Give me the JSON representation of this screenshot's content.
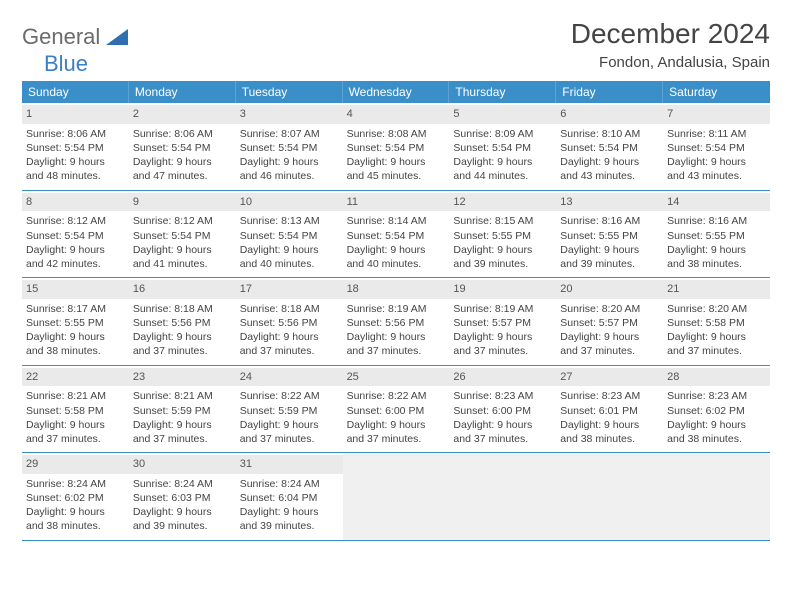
{
  "logo": {
    "text1": "General",
    "text2": "Blue"
  },
  "title": "December 2024",
  "location": "Fondon, Andalusia, Spain",
  "colors": {
    "header_bg": "#3b8fc9",
    "header_text": "#ffffff",
    "logo_gray": "#6b6b6b",
    "logo_blue": "#3b7fc4",
    "daynum_bg": "#eaeaea",
    "empty_bg": "#f0f0f0",
    "week_border": "#3b8fc9"
  },
  "day_names": [
    "Sunday",
    "Monday",
    "Tuesday",
    "Wednesday",
    "Thursday",
    "Friday",
    "Saturday"
  ],
  "weeks": [
    [
      {
        "n": "1",
        "sr": "Sunrise: 8:06 AM",
        "ss": "Sunset: 5:54 PM",
        "d1": "Daylight: 9 hours",
        "d2": "and 48 minutes."
      },
      {
        "n": "2",
        "sr": "Sunrise: 8:06 AM",
        "ss": "Sunset: 5:54 PM",
        "d1": "Daylight: 9 hours",
        "d2": "and 47 minutes."
      },
      {
        "n": "3",
        "sr": "Sunrise: 8:07 AM",
        "ss": "Sunset: 5:54 PM",
        "d1": "Daylight: 9 hours",
        "d2": "and 46 minutes."
      },
      {
        "n": "4",
        "sr": "Sunrise: 8:08 AM",
        "ss": "Sunset: 5:54 PM",
        "d1": "Daylight: 9 hours",
        "d2": "and 45 minutes."
      },
      {
        "n": "5",
        "sr": "Sunrise: 8:09 AM",
        "ss": "Sunset: 5:54 PM",
        "d1": "Daylight: 9 hours",
        "d2": "and 44 minutes."
      },
      {
        "n": "6",
        "sr": "Sunrise: 8:10 AM",
        "ss": "Sunset: 5:54 PM",
        "d1": "Daylight: 9 hours",
        "d2": "and 43 minutes."
      },
      {
        "n": "7",
        "sr": "Sunrise: 8:11 AM",
        "ss": "Sunset: 5:54 PM",
        "d1": "Daylight: 9 hours",
        "d2": "and 43 minutes."
      }
    ],
    [
      {
        "n": "8",
        "sr": "Sunrise: 8:12 AM",
        "ss": "Sunset: 5:54 PM",
        "d1": "Daylight: 9 hours",
        "d2": "and 42 minutes."
      },
      {
        "n": "9",
        "sr": "Sunrise: 8:12 AM",
        "ss": "Sunset: 5:54 PM",
        "d1": "Daylight: 9 hours",
        "d2": "and 41 minutes."
      },
      {
        "n": "10",
        "sr": "Sunrise: 8:13 AM",
        "ss": "Sunset: 5:54 PM",
        "d1": "Daylight: 9 hours",
        "d2": "and 40 minutes."
      },
      {
        "n": "11",
        "sr": "Sunrise: 8:14 AM",
        "ss": "Sunset: 5:54 PM",
        "d1": "Daylight: 9 hours",
        "d2": "and 40 minutes."
      },
      {
        "n": "12",
        "sr": "Sunrise: 8:15 AM",
        "ss": "Sunset: 5:55 PM",
        "d1": "Daylight: 9 hours",
        "d2": "and 39 minutes."
      },
      {
        "n": "13",
        "sr": "Sunrise: 8:16 AM",
        "ss": "Sunset: 5:55 PM",
        "d1": "Daylight: 9 hours",
        "d2": "and 39 minutes."
      },
      {
        "n": "14",
        "sr": "Sunrise: 8:16 AM",
        "ss": "Sunset: 5:55 PM",
        "d1": "Daylight: 9 hours",
        "d2": "and 38 minutes."
      }
    ],
    [
      {
        "n": "15",
        "sr": "Sunrise: 8:17 AM",
        "ss": "Sunset: 5:55 PM",
        "d1": "Daylight: 9 hours",
        "d2": "and 38 minutes."
      },
      {
        "n": "16",
        "sr": "Sunrise: 8:18 AM",
        "ss": "Sunset: 5:56 PM",
        "d1": "Daylight: 9 hours",
        "d2": "and 37 minutes."
      },
      {
        "n": "17",
        "sr": "Sunrise: 8:18 AM",
        "ss": "Sunset: 5:56 PM",
        "d1": "Daylight: 9 hours",
        "d2": "and 37 minutes."
      },
      {
        "n": "18",
        "sr": "Sunrise: 8:19 AM",
        "ss": "Sunset: 5:56 PM",
        "d1": "Daylight: 9 hours",
        "d2": "and 37 minutes."
      },
      {
        "n": "19",
        "sr": "Sunrise: 8:19 AM",
        "ss": "Sunset: 5:57 PM",
        "d1": "Daylight: 9 hours",
        "d2": "and 37 minutes."
      },
      {
        "n": "20",
        "sr": "Sunrise: 8:20 AM",
        "ss": "Sunset: 5:57 PM",
        "d1": "Daylight: 9 hours",
        "d2": "and 37 minutes."
      },
      {
        "n": "21",
        "sr": "Sunrise: 8:20 AM",
        "ss": "Sunset: 5:58 PM",
        "d1": "Daylight: 9 hours",
        "d2": "and 37 minutes."
      }
    ],
    [
      {
        "n": "22",
        "sr": "Sunrise: 8:21 AM",
        "ss": "Sunset: 5:58 PM",
        "d1": "Daylight: 9 hours",
        "d2": "and 37 minutes."
      },
      {
        "n": "23",
        "sr": "Sunrise: 8:21 AM",
        "ss": "Sunset: 5:59 PM",
        "d1": "Daylight: 9 hours",
        "d2": "and 37 minutes."
      },
      {
        "n": "24",
        "sr": "Sunrise: 8:22 AM",
        "ss": "Sunset: 5:59 PM",
        "d1": "Daylight: 9 hours",
        "d2": "and 37 minutes."
      },
      {
        "n": "25",
        "sr": "Sunrise: 8:22 AM",
        "ss": "Sunset: 6:00 PM",
        "d1": "Daylight: 9 hours",
        "d2": "and 37 minutes."
      },
      {
        "n": "26",
        "sr": "Sunrise: 8:23 AM",
        "ss": "Sunset: 6:00 PM",
        "d1": "Daylight: 9 hours",
        "d2": "and 37 minutes."
      },
      {
        "n": "27",
        "sr": "Sunrise: 8:23 AM",
        "ss": "Sunset: 6:01 PM",
        "d1": "Daylight: 9 hours",
        "d2": "and 38 minutes."
      },
      {
        "n": "28",
        "sr": "Sunrise: 8:23 AM",
        "ss": "Sunset: 6:02 PM",
        "d1": "Daylight: 9 hours",
        "d2": "and 38 minutes."
      }
    ],
    [
      {
        "n": "29",
        "sr": "Sunrise: 8:24 AM",
        "ss": "Sunset: 6:02 PM",
        "d1": "Daylight: 9 hours",
        "d2": "and 38 minutes."
      },
      {
        "n": "30",
        "sr": "Sunrise: 8:24 AM",
        "ss": "Sunset: 6:03 PM",
        "d1": "Daylight: 9 hours",
        "d2": "and 39 minutes."
      },
      {
        "n": "31",
        "sr": "Sunrise: 8:24 AM",
        "ss": "Sunset: 6:04 PM",
        "d1": "Daylight: 9 hours",
        "d2": "and 39 minutes."
      },
      {
        "empty": true
      },
      {
        "empty": true
      },
      {
        "empty": true
      },
      {
        "empty": true
      }
    ]
  ]
}
